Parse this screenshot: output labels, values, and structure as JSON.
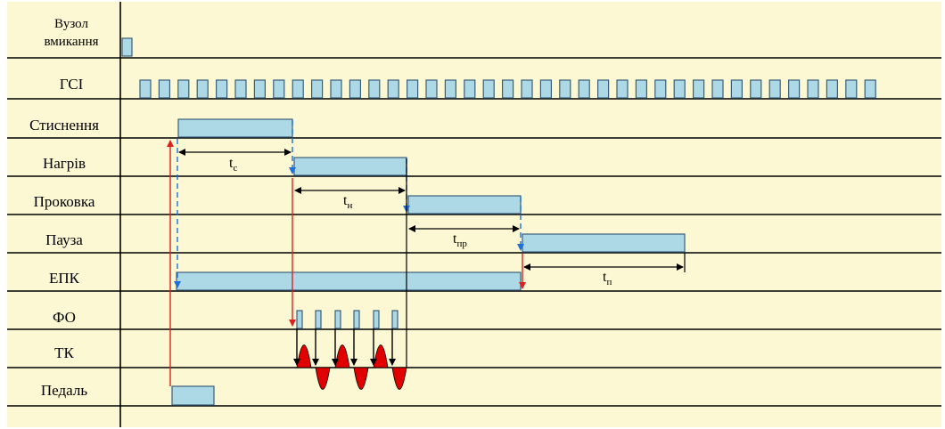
{
  "signals": [
    {
      "id": "vuzol",
      "label_lines": [
        "Вузол",
        "вмикання"
      ]
    },
    {
      "id": "gsi",
      "label_lines": [
        "ГСІ"
      ]
    },
    {
      "id": "stysnennia",
      "label_lines": [
        "Стиснення"
      ]
    },
    {
      "id": "nahriv",
      "label_lines": [
        "Нагрів"
      ]
    },
    {
      "id": "prokovka",
      "label_lines": [
        "Проковка"
      ]
    },
    {
      "id": "pauza",
      "label_lines": [
        "Пауза"
      ]
    },
    {
      "id": "epk",
      "label_lines": [
        "ЕПК"
      ]
    },
    {
      "id": "fo",
      "label_lines": [
        "ФО"
      ]
    },
    {
      "id": "tk",
      "label_lines": [
        "ТК"
      ]
    },
    {
      "id": "pedal",
      "label_lines": [
        "Педаль"
      ]
    }
  ],
  "intervals": [
    {
      "id": "tc",
      "main": "t",
      "sub": "с"
    },
    {
      "id": "tn",
      "main": "t",
      "sub": "н"
    },
    {
      "id": "tpr",
      "main": "t",
      "sub": "пр"
    },
    {
      "id": "tp",
      "main": "t",
      "sub": "п"
    }
  ],
  "colors": {
    "background": "#fdf8d4",
    "pulse_fill": "#add8e6",
    "arrow_red": "#e02020",
    "arrow_blue": "#1e6fd9",
    "tk_fill": "#e00000"
  }
}
